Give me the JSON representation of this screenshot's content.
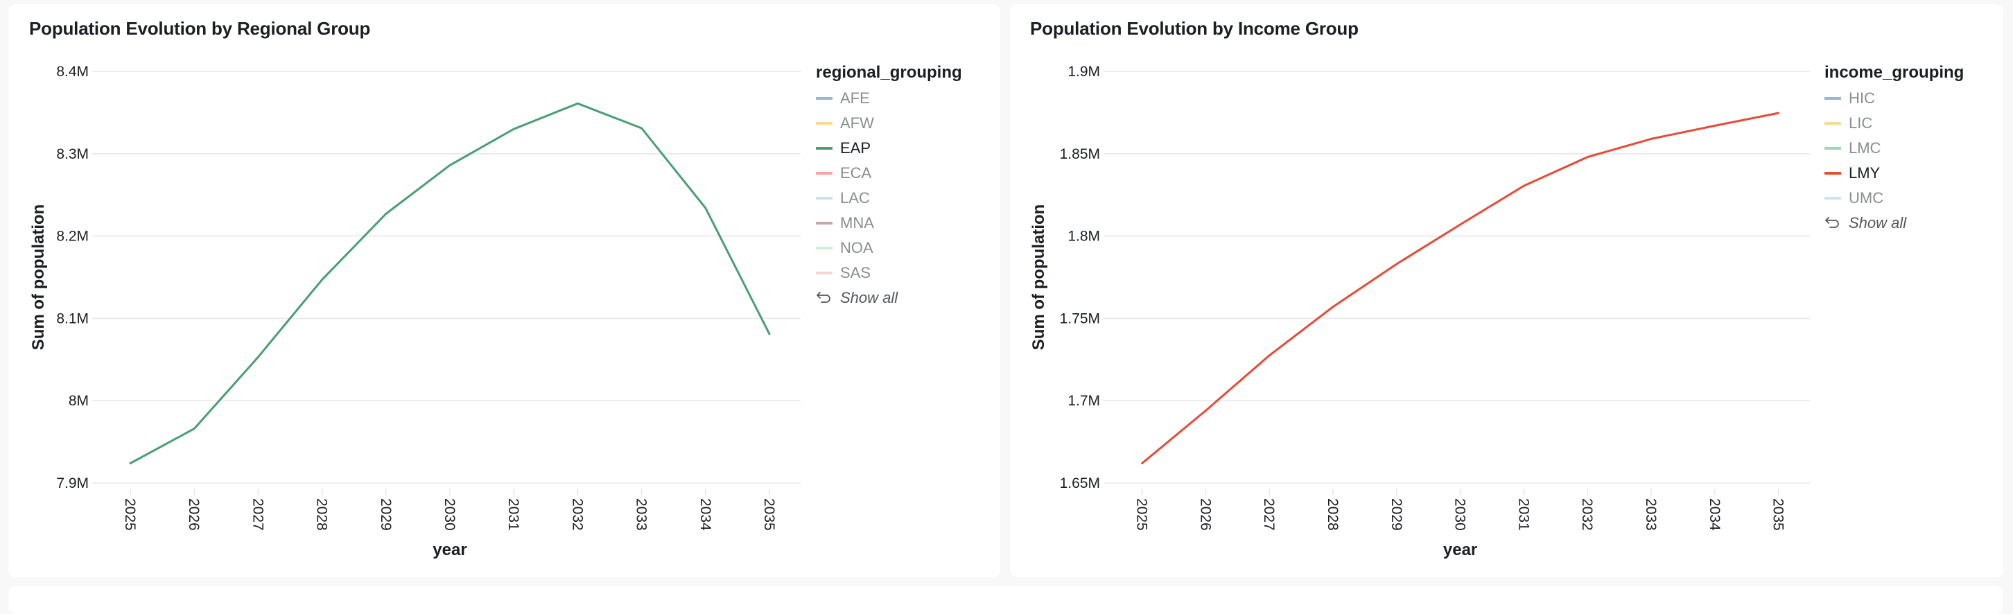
{
  "colors": {
    "page_background": "#f8f8f8",
    "card_background": "#ffffff",
    "gridline": "#e8e8e8",
    "text_primary": "#1b1e22",
    "text_muted": "#8a8d91"
  },
  "icons": {
    "show_all": "return-arrow-icon"
  },
  "chart_data": [
    {
      "type": "line",
      "title": "Population Evolution by Regional Group",
      "xlabel": "year",
      "ylabel": "Sum of population",
      "x": [
        "2025",
        "2026",
        "2027",
        "2028",
        "2029",
        "2030",
        "2031",
        "2032",
        "2033",
        "2034",
        "2035"
      ],
      "ylim": [
        7900000,
        8400000
      ],
      "yticks": [
        7900000,
        8000000,
        8100000,
        8200000,
        8300000,
        8400000
      ],
      "ytick_labels": [
        "7.9M",
        "8M",
        "8.1M",
        "8.2M",
        "8.3M",
        "8.4M"
      ],
      "grid": true,
      "legend_title": "regional_grouping",
      "legend_position": "top-right",
      "legend": [
        {
          "name": "AFE",
          "color": "#9ab8cc",
          "selected": false
        },
        {
          "name": "AFW",
          "color": "#fbd699",
          "selected": false
        },
        {
          "name": "EAP",
          "color": "#4a9e72",
          "selected": true
        },
        {
          "name": "ECA",
          "color": "#f4a69a",
          "selected": false
        },
        {
          "name": "LAC",
          "color": "#cde0ee",
          "selected": false
        },
        {
          "name": "MNA",
          "color": "#cea3ab",
          "selected": false
        },
        {
          "name": "NOA",
          "color": "#d3ecd9",
          "selected": false
        },
        {
          "name": "SAS",
          "color": "#f7d3d2",
          "selected": false
        }
      ],
      "show_all_label": "Show all",
      "series": [
        {
          "name": "EAP",
          "color": "#4a9e72",
          "values": [
            7924000,
            7966000,
            8053000,
            8147000,
            8227000,
            8286000,
            8330000,
            8361000,
            8331000,
            8234000,
            8081000
          ]
        }
      ]
    },
    {
      "type": "line",
      "title": "Population Evolution by Income Group",
      "xlabel": "year",
      "ylabel": "Sum of population",
      "x": [
        "2025",
        "2026",
        "2027",
        "2028",
        "2029",
        "2030",
        "2031",
        "2032",
        "2033",
        "2034",
        "2035"
      ],
      "ylim": [
        1650000,
        1900000
      ],
      "yticks": [
        1650000,
        1700000,
        1750000,
        1800000,
        1850000,
        1900000
      ],
      "ytick_labels": [
        "1.65M",
        "1.7M",
        "1.75M",
        "1.8M",
        "1.85M",
        "1.9M"
      ],
      "grid": true,
      "legend_title": "income_grouping",
      "legend_position": "top-right",
      "legend": [
        {
          "name": "HIC",
          "color": "#99b6ca",
          "selected": false
        },
        {
          "name": "LIC",
          "color": "#f9d89c",
          "selected": false
        },
        {
          "name": "LMC",
          "color": "#a4d2b5",
          "selected": false
        },
        {
          "name": "LMY",
          "color": "#e84a36",
          "selected": true
        },
        {
          "name": "UMC",
          "color": "#cfe2ef",
          "selected": false
        }
      ],
      "show_all_label": "Show all",
      "series": [
        {
          "name": "LMY",
          "color": "#e84a36",
          "values": [
            1662000,
            1694000,
            1727500,
            1757000,
            1783000,
            1807000,
            1830500,
            1848000,
            1859000,
            1867000,
            1874700
          ]
        }
      ]
    }
  ]
}
